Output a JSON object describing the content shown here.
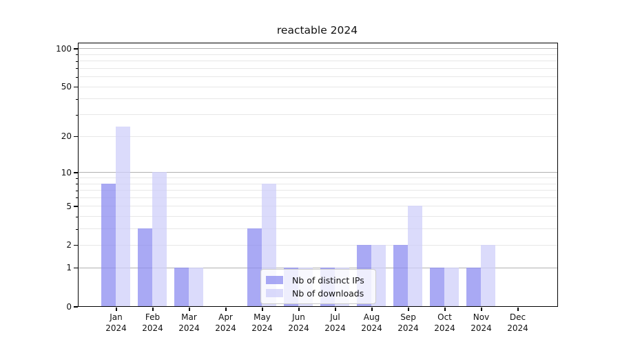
{
  "chart_data": {
    "type": "bar",
    "title": "reactable 2024",
    "categories": [
      "Jan 2024",
      "Feb 2024",
      "Mar 2024",
      "Apr 2024",
      "May 2024",
      "Jun 2024",
      "Jul 2024",
      "Aug 2024",
      "Sep 2024",
      "Oct 2024",
      "Nov 2024",
      "Dec 2024"
    ],
    "series": [
      {
        "name": "Nb of distinct IPs",
        "values": [
          8,
          3,
          1,
          0,
          3,
          1,
          1,
          2,
          2,
          1,
          1,
          0
        ],
        "color": "#8c8cf0",
        "opacity": 0.75
      },
      {
        "name": "Nb of downloads",
        "values": [
          24,
          10,
          1,
          0,
          8,
          1,
          1,
          2,
          5,
          1,
          2,
          0
        ],
        "color": "#cfcffa",
        "opacity": 0.75
      }
    ],
    "xlabel": "",
    "ylabel": "",
    "yscale": "log10(1+x)",
    "yticks": [
      0,
      1,
      2,
      5,
      10,
      20,
      50,
      100
    ],
    "minor_yticks": [
      3,
      4,
      6,
      7,
      8,
      9,
      30,
      40,
      60,
      70,
      80,
      90
    ],
    "decade_ticks": [
      1,
      10,
      100
    ],
    "ylim": [
      0,
      110
    ],
    "grid": true,
    "legend_position": "bottom-center-inside",
    "colors": {
      "grid_major": "#b0b0b0",
      "grid_minor": "#e7e7e7",
      "axis": "#000000",
      "background": "#ffffff"
    }
  }
}
